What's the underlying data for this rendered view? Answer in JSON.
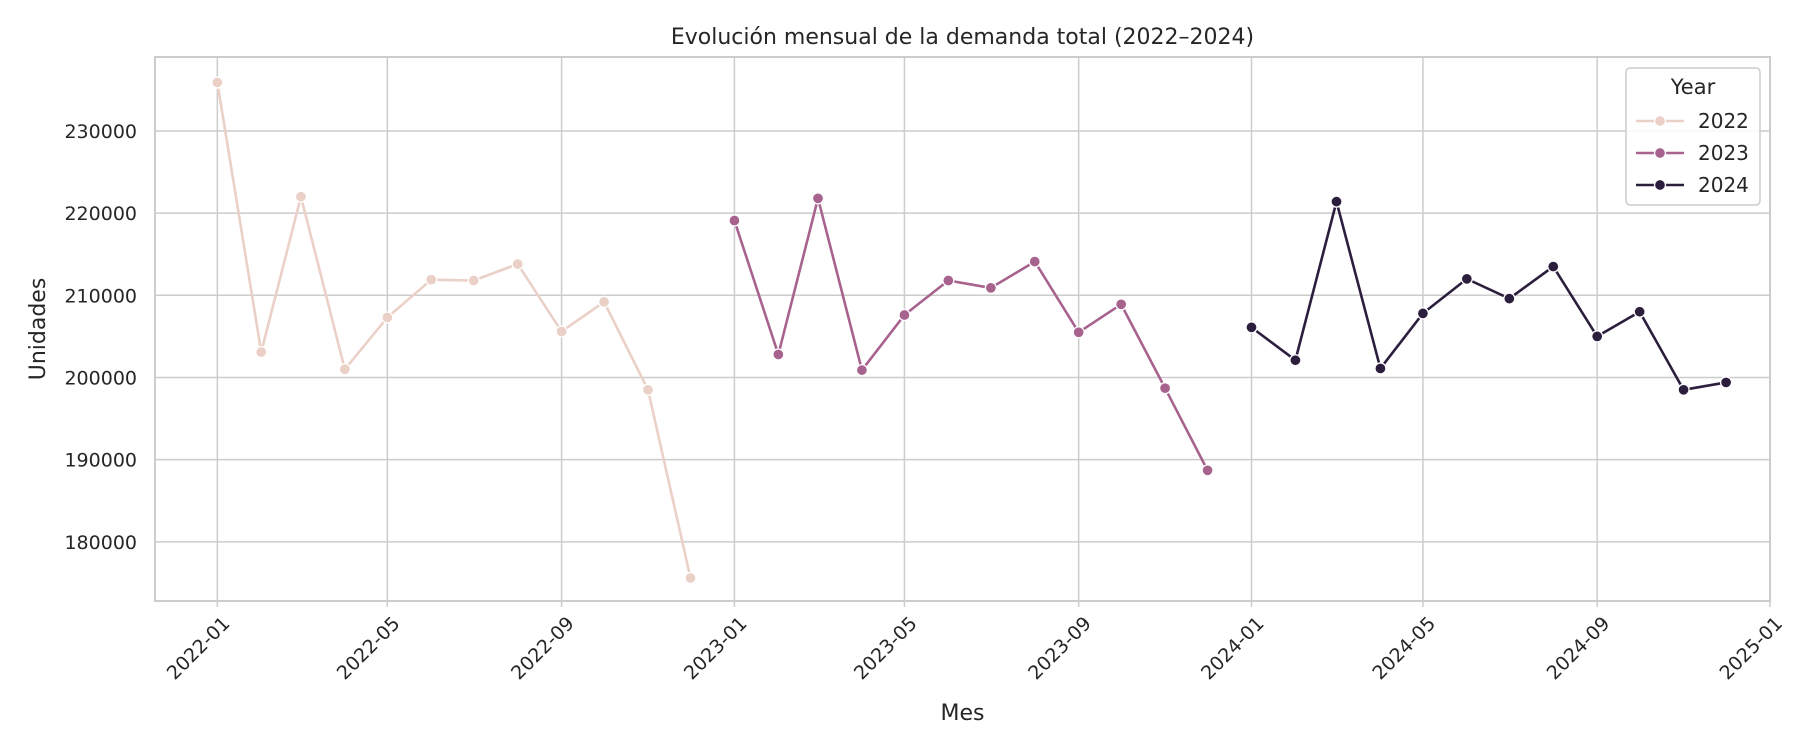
{
  "chart_data": {
    "type": "line",
    "title": "Evolución mensual de la demanda total (2022–2024)",
    "xlabel": "Mes",
    "ylabel": "Unidades",
    "x_type": "date",
    "xlim": [
      "2021-11-18",
      "2025-01-01"
    ],
    "ylim": [
      172800,
      239000
    ],
    "x_ticks": [
      "2022-01",
      "2022-05",
      "2022-09",
      "2023-01",
      "2023-05",
      "2023-09",
      "2024-01",
      "2024-05",
      "2024-09",
      "2025-01"
    ],
    "y_ticks": [
      180000,
      190000,
      200000,
      210000,
      220000,
      230000
    ],
    "grid": true,
    "legend": {
      "title": "Year",
      "position": "top-right"
    },
    "markers": true,
    "series": [
      {
        "name": "2022",
        "color": "#ebd0c8",
        "x": [
          "2022-01-01",
          "2022-02-01",
          "2022-03-01",
          "2022-04-01",
          "2022-05-01",
          "2022-06-01",
          "2022-07-01",
          "2022-08-01",
          "2022-09-01",
          "2022-10-01",
          "2022-11-01",
          "2022-12-01"
        ],
        "values": [
          235900,
          203100,
          222000,
          201000,
          207300,
          211900,
          211800,
          213800,
          205600,
          209200,
          198500,
          175600
        ]
      },
      {
        "name": "2023",
        "color": "#a7638e",
        "x": [
          "2023-01-01",
          "2023-02-01",
          "2023-03-01",
          "2023-04-01",
          "2023-05-01",
          "2023-06-01",
          "2023-07-01",
          "2023-08-01",
          "2023-09-01",
          "2023-10-01",
          "2023-11-01",
          "2023-12-01"
        ],
        "values": [
          219100,
          202800,
          221800,
          200900,
          207600,
          211800,
          210900,
          214100,
          205500,
          208900,
          198700,
          188700
        ]
      },
      {
        "name": "2024",
        "color": "#2c1e3d",
        "x": [
          "2024-01-01",
          "2024-02-01",
          "2024-03-01",
          "2024-04-01",
          "2024-05-01",
          "2024-06-01",
          "2024-07-01",
          "2024-08-01",
          "2024-09-01",
          "2024-10-01",
          "2024-11-01",
          "2024-12-01"
        ],
        "values": [
          206100,
          202100,
          221400,
          201100,
          207800,
          212000,
          209600,
          213500,
          205000,
          208000,
          198500,
          199400
        ]
      }
    ]
  }
}
